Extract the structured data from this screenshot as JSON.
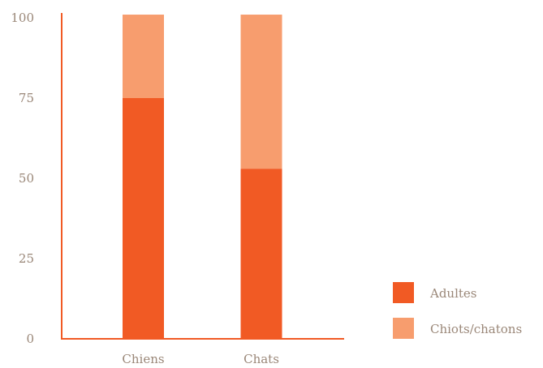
{
  "chart_data": {
    "type": "bar",
    "stacked": true,
    "categories": [
      "Chiens",
      "Chats"
    ],
    "series": [
      {
        "name": "Adultes",
        "values": [
          75,
          53
        ],
        "color": "#f15a24"
      },
      {
        "name": "Chiots/chatons",
        "values": [
          26,
          48
        ],
        "color": "#f79d6e"
      }
    ],
    "ylim": [
      0,
      100
    ],
    "yticks": [
      0,
      25,
      50,
      75,
      100
    ],
    "axis_color": "#f15a24",
    "grid": false,
    "legend_position": "bottom-right"
  }
}
